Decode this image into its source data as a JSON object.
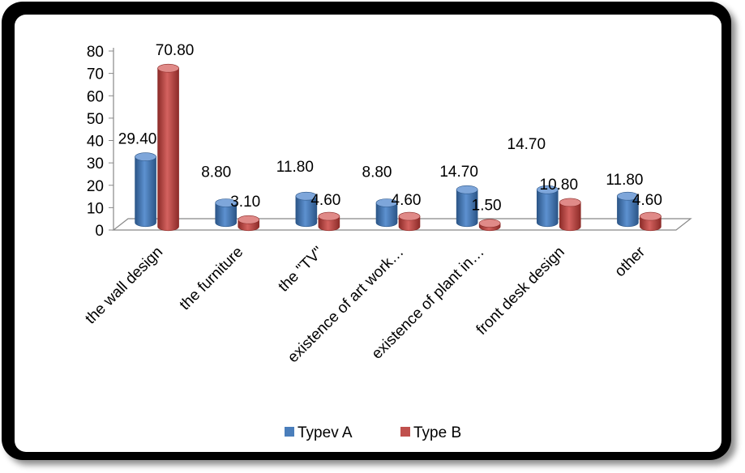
{
  "chart_data": {
    "type": "bar",
    "categories": [
      "the wall design",
      "the furniture",
      "the \"TV\"",
      "existence of art work…",
      "existence of plant in…",
      "front desk design",
      "other"
    ],
    "series": [
      {
        "name": "Typev A",
        "values": [
          29.4,
          8.8,
          11.8,
          8.8,
          14.7,
          14.7,
          11.8
        ],
        "labels": [
          "29.40",
          "8.80",
          "11.80",
          "8.80",
          "14.70",
          "14.70",
          "11.80"
        ]
      },
      {
        "name": "Type B",
        "values": [
          70.8,
          3.1,
          4.6,
          4.6,
          1.5,
          10.8,
          4.6
        ],
        "labels": [
          "70.80",
          "3.10",
          "4.60",
          "4.60",
          "1.50",
          "10.80",
          "4.60"
        ]
      }
    ],
    "ylim": [
      0,
      80
    ],
    "yticks": [
      "0",
      "10",
      "20",
      "30",
      "40",
      "50",
      "60",
      "70",
      "80"
    ],
    "legend_position": "bottom",
    "grid": false,
    "style": "3d-cylinder"
  },
  "colors": {
    "series_a": "#4a7ebb",
    "series_a_dark": "#2b5587",
    "series_a_light": "#7ea6da",
    "series_b": "#c0504d",
    "series_b_dark": "#8c2b28",
    "series_b_light": "#e08a88",
    "frame": "#000000"
  }
}
